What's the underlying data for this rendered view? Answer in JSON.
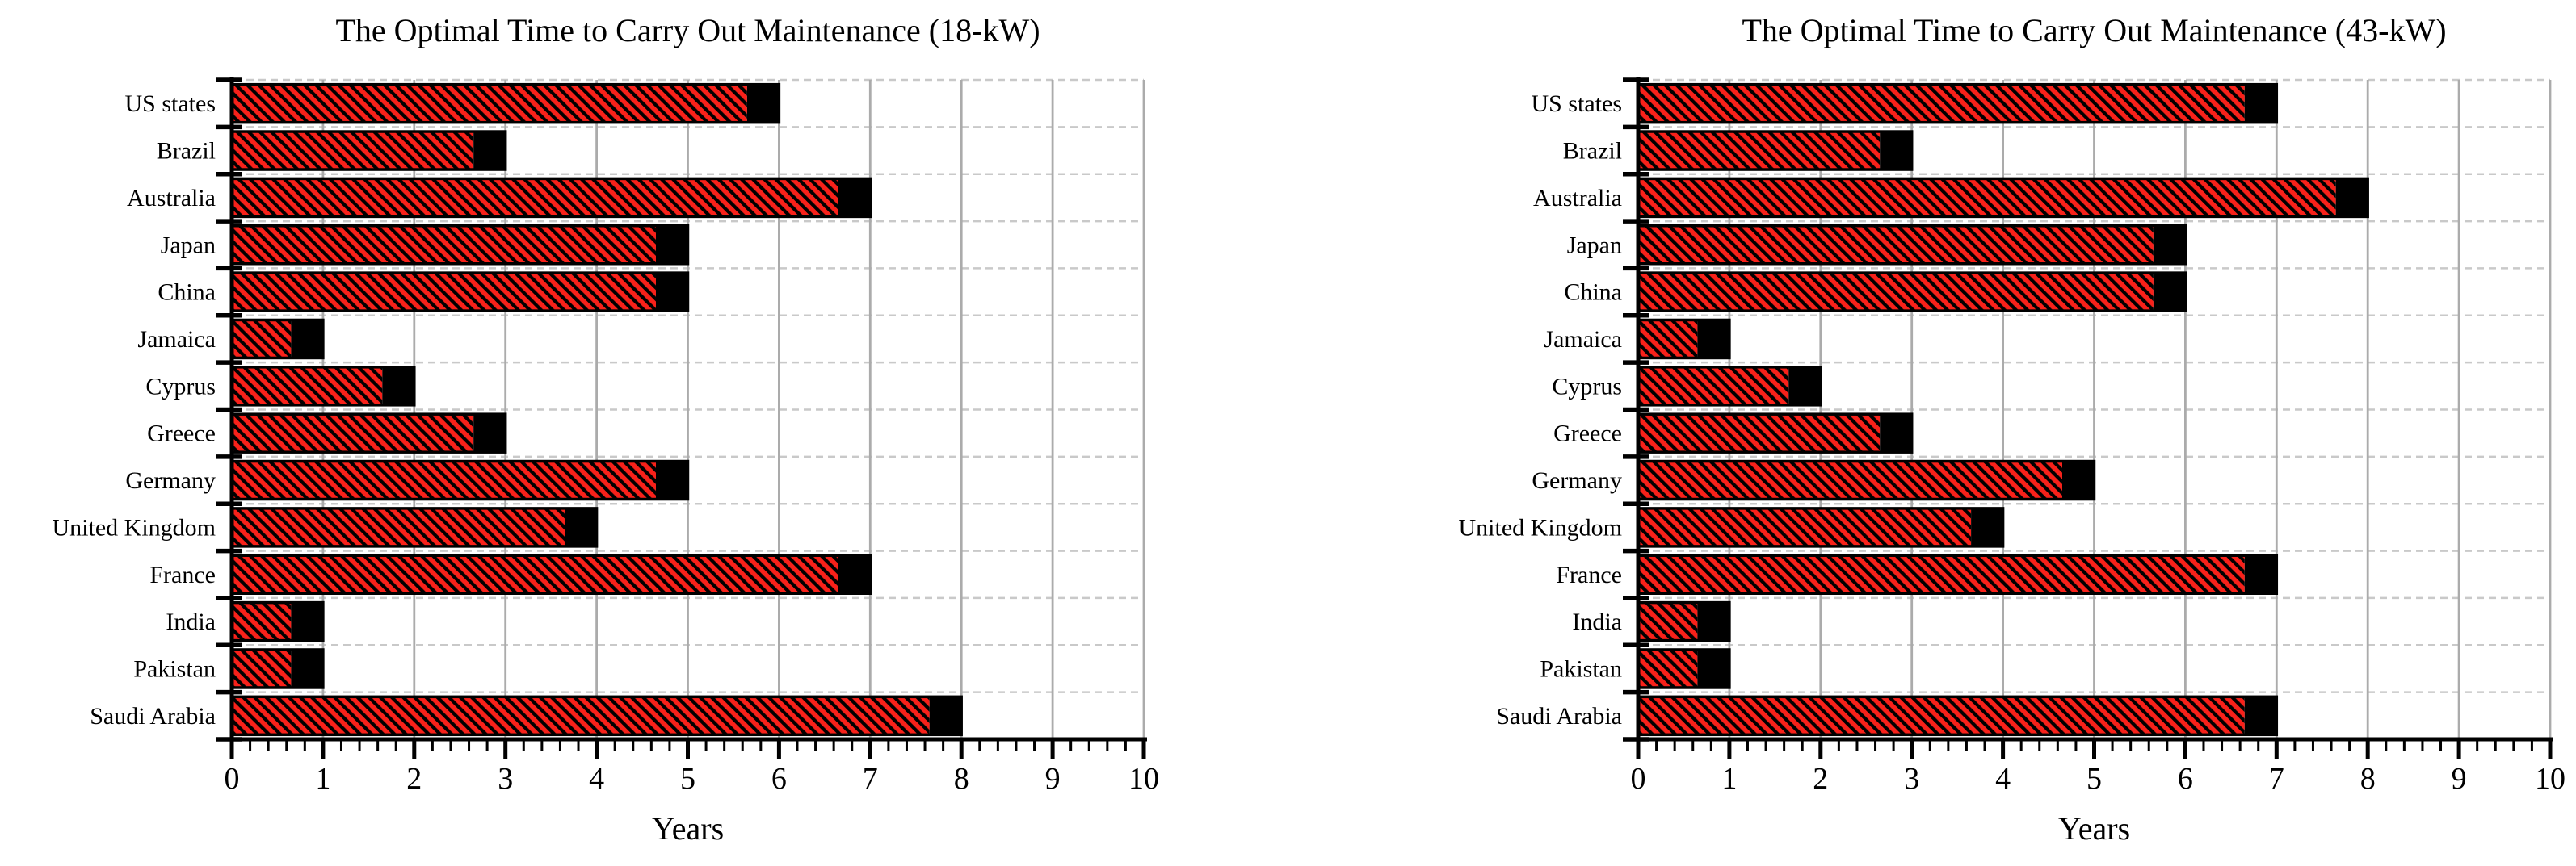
{
  "figure": {
    "background": "#ffffff",
    "axis_color": "#000000",
    "bar_fill_color": "#f8211a",
    "bar_hatch_color": "#000000",
    "bar_cap_color": "#000000",
    "grid_vertical_color": "#ababab",
    "row_separator_color": "#c9c9c9"
  },
  "chart_data": [
    {
      "id": "18kw",
      "type": "bar",
      "orientation": "horizontal",
      "title": "The Optimal Time to Carry Out Maintenance (18-kW)",
      "xlabel": "Years",
      "categories": [
        "US states",
        "Brazil",
        "Australia",
        "Japan",
        "China",
        "Jamaica",
        "Cyprus",
        "Greece",
        "Germany",
        "United Kingdom",
        "France",
        "India",
        "Pakistan",
        "Saudi Arabia"
      ],
      "series": [
        {
          "name": "optimal-time-hatched",
          "style": "red-hatched",
          "values": [
            5.65,
            2.65,
            6.65,
            4.65,
            4.65,
            0.65,
            1.65,
            2.65,
            4.65,
            3.65,
            6.65,
            0.65,
            0.65,
            7.65
          ]
        },
        {
          "name": "end-cap-black",
          "style": "solid-black",
          "values": [
            0.35,
            0.35,
            0.35,
            0.35,
            0.35,
            0.35,
            0.35,
            0.35,
            0.35,
            0.35,
            0.35,
            0.35,
            0.35,
            0.35
          ]
        }
      ],
      "totals": [
        6,
        3,
        7,
        5,
        5,
        1,
        2,
        3,
        5,
        4,
        7,
        1,
        1,
        8
      ],
      "xlim": [
        0,
        10
      ],
      "x_ticks": [
        "0",
        "1",
        "2",
        "3",
        "4",
        "5",
        "6",
        "7",
        "8",
        "9",
        "10"
      ],
      "minor_tick_step": 0.2,
      "grid": {
        "vertical": "solid",
        "horizontal": "dashed-row-separators"
      },
      "legend": "none"
    },
    {
      "id": "43kw",
      "type": "bar",
      "orientation": "horizontal",
      "title": "The Optimal Time to Carry Out Maintenance (43-kW)",
      "xlabel": "Years",
      "categories": [
        "US states",
        "Brazil",
        "Australia",
        "Japan",
        "China",
        "Jamaica",
        "Cyprus",
        "Greece",
        "Germany",
        "United Kingdom",
        "France",
        "India",
        "Pakistan",
        "Saudi Arabia"
      ],
      "series": [
        {
          "name": "optimal-time-hatched",
          "style": "red-hatched",
          "values": [
            6.65,
            2.65,
            7.65,
            5.65,
            5.65,
            0.65,
            1.65,
            2.65,
            4.65,
            3.65,
            6.65,
            0.65,
            0.65,
            6.65
          ]
        },
        {
          "name": "end-cap-black",
          "style": "solid-black",
          "values": [
            0.35,
            0.35,
            0.35,
            0.35,
            0.35,
            0.35,
            0.35,
            0.35,
            0.35,
            0.35,
            0.35,
            0.35,
            0.35,
            0.35
          ]
        }
      ],
      "totals": [
        7,
        3,
        8,
        6,
        6,
        1,
        2,
        3,
        5,
        4,
        7,
        1,
        1,
        7
      ],
      "xlim": [
        0,
        10
      ],
      "x_ticks": [
        "0",
        "1",
        "2",
        "3",
        "4",
        "5",
        "6",
        "7",
        "8",
        "9",
        "10"
      ],
      "minor_tick_step": 0.2,
      "grid": {
        "vertical": "solid",
        "horizontal": "dashed-row-separators"
      },
      "legend": "none"
    }
  ]
}
